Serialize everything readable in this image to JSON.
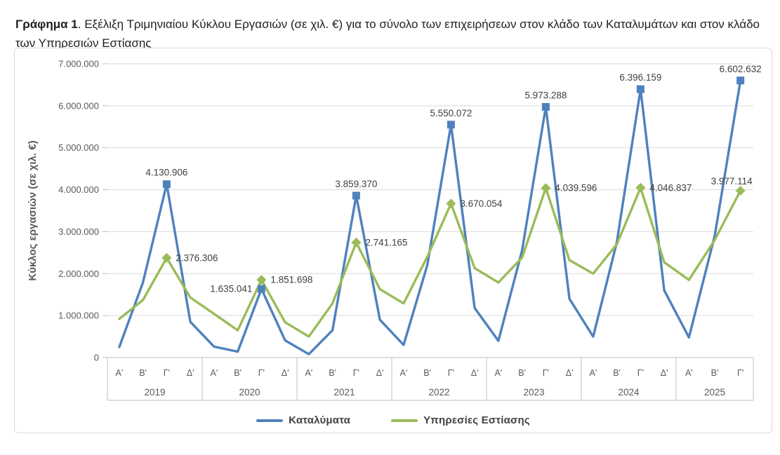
{
  "caption": {
    "bold": "Γράφημα 1",
    "text": ". Εξέλιξη Τριμηνιαίου Κύκλου Εργασιών (σε χιλ. €) για το σύνολο των επιχειρήσεων στον κλάδο των Καταλυμάτων και στον κλάδο των Υπηρεσιών Εστίασης"
  },
  "chart_data": {
    "type": "line",
    "title": "Γράφημα 1. Εξέλιξη Τριμηνιαίου Κύκλου Εργασιών (σε χιλ. €) για το σύνολο των επιχειρήσεων στον κλάδο των Καταλυμάτων και στον κλάδο των Υπηρεσιών Εστίασης",
    "ylabel": "Κύκλος εργασιών (σε χιλ. €)",
    "ylim": [
      0,
      7000000
    ],
    "ytick_step": 1000000,
    "ytick_labels": [
      "0",
      "1.000.000",
      "2.000.000",
      "3.000.000",
      "4.000.000",
      "5.000.000",
      "6.000.000",
      "7.000.000"
    ],
    "grid": true,
    "legend_position": "bottom",
    "colors": {
      "accommodation": "#4F81BD",
      "food_service": "#9BBB59",
      "grid": "#d9d9d9",
      "axis": "#bfbfbf",
      "axis_text": "#595959",
      "label_text": "#404040"
    },
    "years": [
      {
        "label": "2019",
        "quarters": [
          "Α'",
          "Β'",
          "Γ'",
          "Δ'"
        ]
      },
      {
        "label": "2020",
        "quarters": [
          "Α'",
          "Β'",
          "Γ'",
          "Δ'"
        ]
      },
      {
        "label": "2021",
        "quarters": [
          "Α'",
          "Β'",
          "Γ'",
          "Δ'"
        ]
      },
      {
        "label": "2022",
        "quarters": [
          "Α'",
          "Β'",
          "Γ'",
          "Δ'"
        ]
      },
      {
        "label": "2023",
        "quarters": [
          "Α'",
          "Β'",
          "Γ'",
          "Δ'"
        ]
      },
      {
        "label": "2024",
        "quarters": [
          "Α'",
          "Β'",
          "Γ'",
          "Δ'"
        ]
      },
      {
        "label": "2025",
        "quarters": [
          "Α'",
          "Β'",
          "Γ'"
        ]
      }
    ],
    "series": [
      {
        "name": "Καταλύματα",
        "color": "#4F81BD",
        "marker": "square",
        "values": [
          250000,
          1790000,
          4130906,
          850000,
          260000,
          140000,
          1635041,
          410000,
          80000,
          650000,
          3859370,
          900000,
          300000,
          2200000,
          5550072,
          1180000,
          400000,
          2550000,
          5973288,
          1400000,
          500000,
          2750000,
          6396159,
          1600000,
          480000,
          2900000,
          6602632
        ]
      },
      {
        "name": "Υπηρεσίες Εστίασης",
        "color": "#9BBB59",
        "marker": "diamond",
        "values": [
          920000,
          1370000,
          2376306,
          1430000,
          1040000,
          650000,
          1851698,
          840000,
          500000,
          1290000,
          2741165,
          1630000,
          1290000,
          2400000,
          3670054,
          2130000,
          1790000,
          2380000,
          4039596,
          2320000,
          2000000,
          2700000,
          4046837,
          2270000,
          1850000,
          2800000,
          3977114
        ]
      }
    ],
    "data_labels": [
      {
        "series": 0,
        "index": 2,
        "text": "4.130.906",
        "placement": "above"
      },
      {
        "series": 0,
        "index": 6,
        "text": "1.635.041",
        "placement": "left"
      },
      {
        "series": 0,
        "index": 10,
        "text": "3.859.370",
        "placement": "above"
      },
      {
        "series": 0,
        "index": 14,
        "text": "5.550.072",
        "placement": "above"
      },
      {
        "series": 0,
        "index": 18,
        "text": "5.973.288",
        "placement": "above"
      },
      {
        "series": 0,
        "index": 22,
        "text": "6.396.159",
        "placement": "above"
      },
      {
        "series": 0,
        "index": 26,
        "text": "6.602.632",
        "placement": "above"
      },
      {
        "series": 1,
        "index": 2,
        "text": "2.376.306",
        "placement": "right"
      },
      {
        "series": 1,
        "index": 6,
        "text": "1.851.698",
        "placement": "right"
      },
      {
        "series": 1,
        "index": 10,
        "text": "2.741.165",
        "placement": "right"
      },
      {
        "series": 1,
        "index": 14,
        "text": "3.670.054",
        "placement": "right"
      },
      {
        "series": 1,
        "index": 18,
        "text": "4.039.596",
        "placement": "right"
      },
      {
        "series": 1,
        "index": 22,
        "text": "4.046.837",
        "placement": "right"
      },
      {
        "series": 1,
        "index": 26,
        "text": "3.977.114",
        "placement": "above-left"
      }
    ]
  }
}
